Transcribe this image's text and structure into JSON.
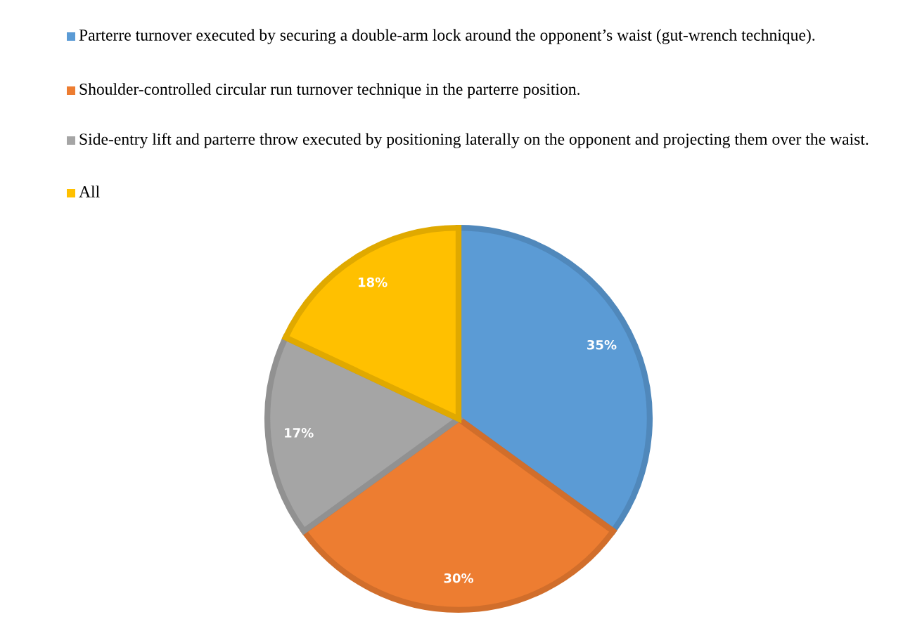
{
  "chart_data": {
    "type": "pie",
    "categories": [
      "Parterre turnover executed by securing a double-arm lock around the opponent’s waist (gut-wrench technique).",
      "Shoulder-controlled circular run turnover technique in the parterre position.",
      "Side-entry lift and parterre throw executed by positioning laterally on the opponent and projecting them over the waist.",
      "All"
    ],
    "values": [
      35,
      30,
      17,
      18
    ],
    "colors": [
      "#5b9bd5",
      "#ed7d31",
      "#a5a5a5",
      "#ffc000"
    ],
    "value_labels": [
      "35%",
      "30%",
      "17%",
      "18%"
    ],
    "legend": "top"
  }
}
